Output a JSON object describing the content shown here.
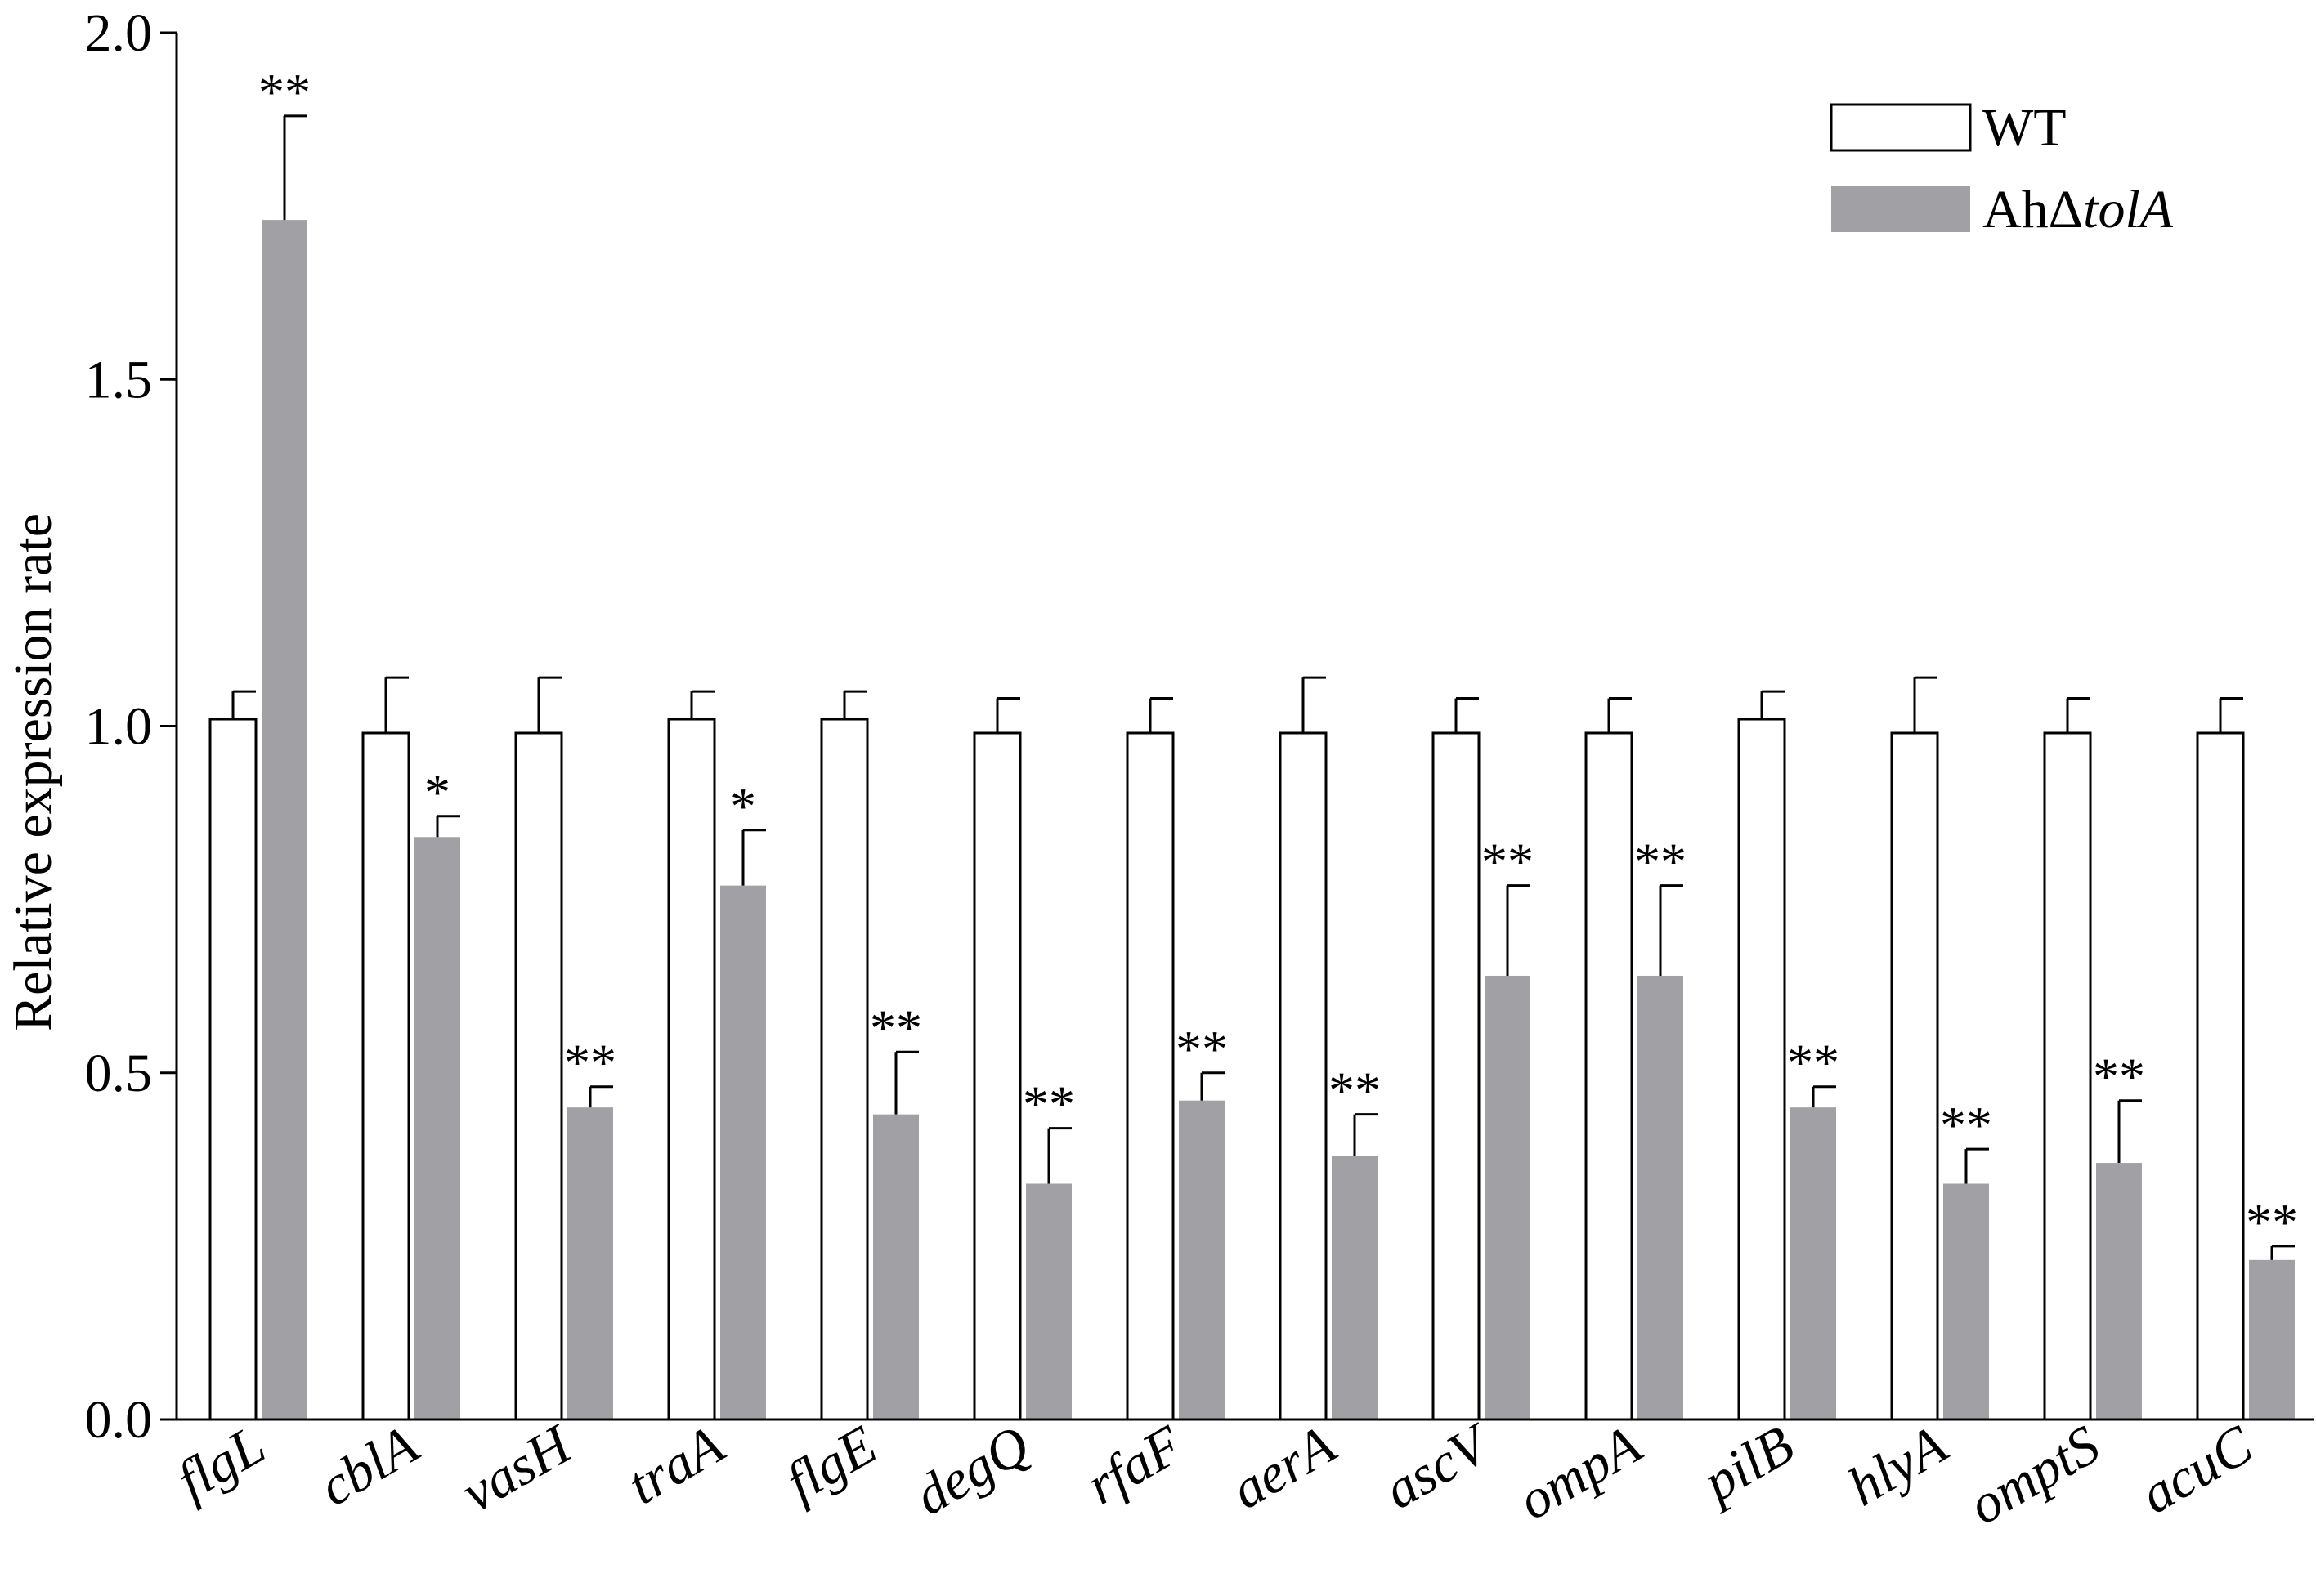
{
  "chart_data": {
    "type": "bar",
    "title": "",
    "xlabel": "",
    "ylabel": "Relative expression rate",
    "ylim": [
      0,
      2.0
    ],
    "yticks": [
      "0.0",
      "0.5",
      "1.0",
      "1.5",
      "2.0"
    ],
    "grid": false,
    "legend_position": "top-right",
    "categories": [
      "flgL",
      "cblA",
      "vasH",
      "traA",
      "flgE",
      "degQ",
      "rfaF",
      "aerA",
      "ascV",
      "ompA",
      "pilB",
      "hlyA",
      "omptS",
      "acuC"
    ],
    "series": [
      {
        "name": "WT",
        "color": "#ffffff",
        "stroke": "#000000",
        "values": [
          1.01,
          0.99,
          0.99,
          1.01,
          1.01,
          0.99,
          0.99,
          0.99,
          0.99,
          0.99,
          1.01,
          0.99,
          0.99,
          0.99
        ],
        "errors": [
          0.04,
          0.08,
          0.08,
          0.04,
          0.04,
          0.05,
          0.05,
          0.08,
          0.05,
          0.05,
          0.04,
          0.08,
          0.05,
          0.05
        ]
      },
      {
        "name": "AhΔtolA",
        "name_parts": [
          "AhΔ",
          "tolA"
        ],
        "color": "#a1a0a5",
        "stroke": "#a1a0a5",
        "values": [
          1.73,
          0.84,
          0.45,
          0.77,
          0.44,
          0.34,
          0.46,
          0.38,
          0.64,
          0.64,
          0.45,
          0.34,
          0.37,
          0.23
        ],
        "errors": [
          0.15,
          0.03,
          0.03,
          0.08,
          0.09,
          0.08,
          0.04,
          0.06,
          0.13,
          0.13,
          0.03,
          0.05,
          0.09,
          0.02
        ],
        "significance": [
          "**",
          "*",
          "**",
          "*",
          "**",
          "**",
          "**",
          "**",
          "**",
          "**",
          "**",
          "**",
          "**",
          "**"
        ]
      }
    ]
  }
}
